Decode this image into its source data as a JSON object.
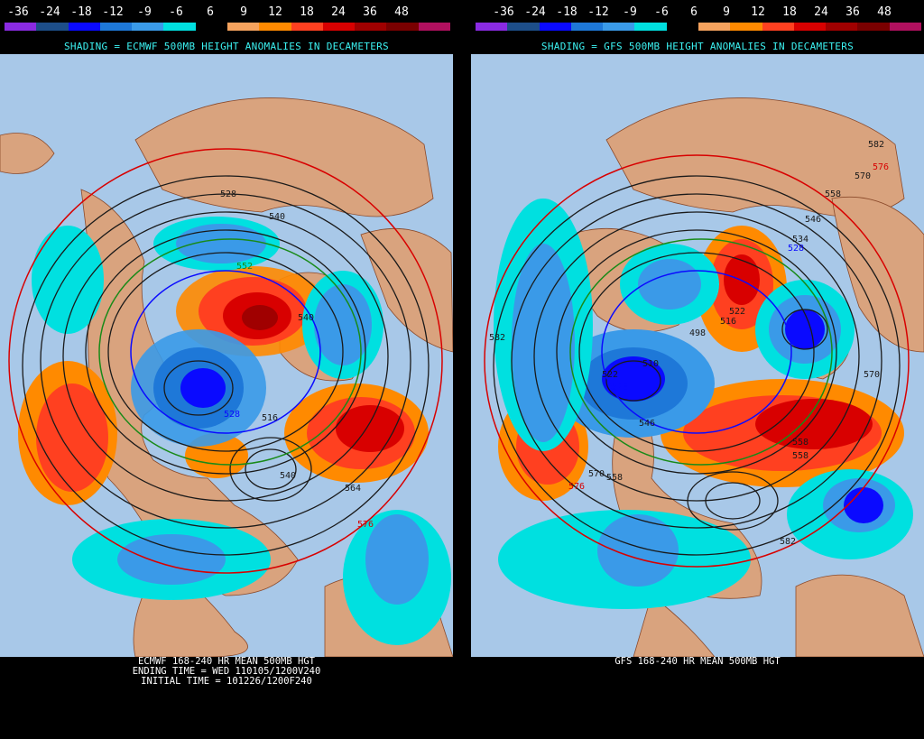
{
  "scale": {
    "labels": [
      "-36",
      "-24",
      "-18",
      "-12",
      "-9",
      "-6",
      "6",
      "9",
      "12",
      "18",
      "24",
      "36",
      "48"
    ],
    "colors": [
      "#8a2be2",
      "#1d4e89",
      "#0a0aff",
      "#1e78d8",
      "#3a9ae8",
      "#00e0e0",
      "#000000",
      "#f5a25d",
      "#ff8a00",
      "#ff4020",
      "#d80000",
      "#a00000",
      "#7a0000",
      "#b0105e"
    ]
  },
  "left": {
    "subtitle": "SHADING = ECMWF 500MB HEIGHT ANOMALIES IN DECAMETERS",
    "caption": [
      "ECMWF 168-240 HR MEAN 500MB HGT",
      "ENDING TIME = WED 110105/1200V240",
      "INITIAL TIME = 101226/1200F240"
    ],
    "contour_labels": [
      "528",
      "540",
      "552",
      "540",
      "516",
      "528",
      "540",
      "564",
      "576"
    ]
  },
  "right": {
    "subtitle": "SHADING = GFS 500MB HEIGHT ANOMALIES IN DECAMETERS",
    "caption": [
      "GFS 168-240 HR MEAN 500MB HGT"
    ],
    "contour_labels": [
      "582",
      "576",
      "570",
      "558",
      "546",
      "534",
      "528",
      "522",
      "516",
      "510",
      "498",
      "522",
      "528",
      "546",
      "558",
      "570",
      "576",
      "582",
      "582",
      "570",
      "558",
      "558"
    ]
  },
  "colors": {
    "ocean": "#a8c8e8",
    "land": "#d9a37e",
    "contour": "#1a1a1a",
    "subtitle": "#3cf3f3"
  }
}
